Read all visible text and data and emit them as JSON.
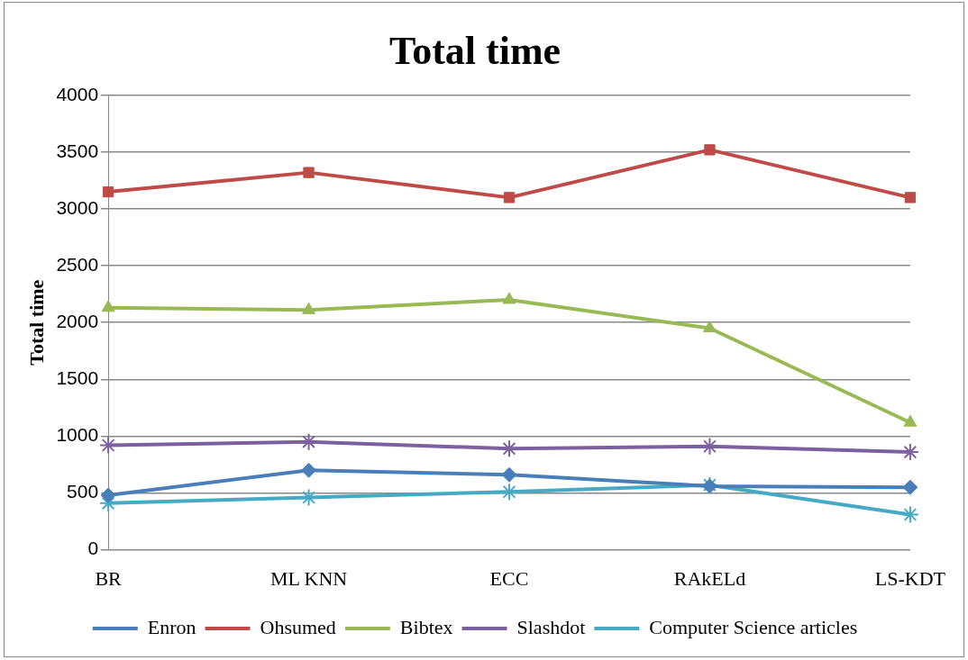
{
  "chart_data": {
    "type": "line",
    "title": "Total time",
    "ylabel": "Total time",
    "categories": [
      "BR",
      "ML KNN",
      "ECC",
      "RAkELd",
      "LS-KDT"
    ],
    "series": [
      {
        "name": "Enron",
        "color": "#4a7ebb",
        "marker": "diamond",
        "values": [
          480,
          700,
          660,
          560,
          550
        ]
      },
      {
        "name": "Ohsumed",
        "color": "#be4b48",
        "marker": "square",
        "values": [
          3150,
          3320,
          3100,
          3520,
          3100
        ]
      },
      {
        "name": "Bibtex",
        "color": "#98b954",
        "marker": "triangle",
        "values": [
          2130,
          2110,
          2200,
          1950,
          1120
        ]
      },
      {
        "name": "Slashdot",
        "color": "#7d60a0",
        "marker": "cross",
        "values": [
          920,
          950,
          890,
          910,
          860
        ]
      },
      {
        "name": "Computer Science articles",
        "color": "#46aac5",
        "marker": "cross",
        "values": [
          410,
          460,
          510,
          570,
          310
        ]
      }
    ],
    "ylim": [
      0,
      4000
    ],
    "yticks": [
      0,
      500,
      1000,
      1500,
      2000,
      2500,
      3000,
      3500,
      4000
    ],
    "grid": "y",
    "legend": "bottom",
    "line_style": "solid"
  }
}
